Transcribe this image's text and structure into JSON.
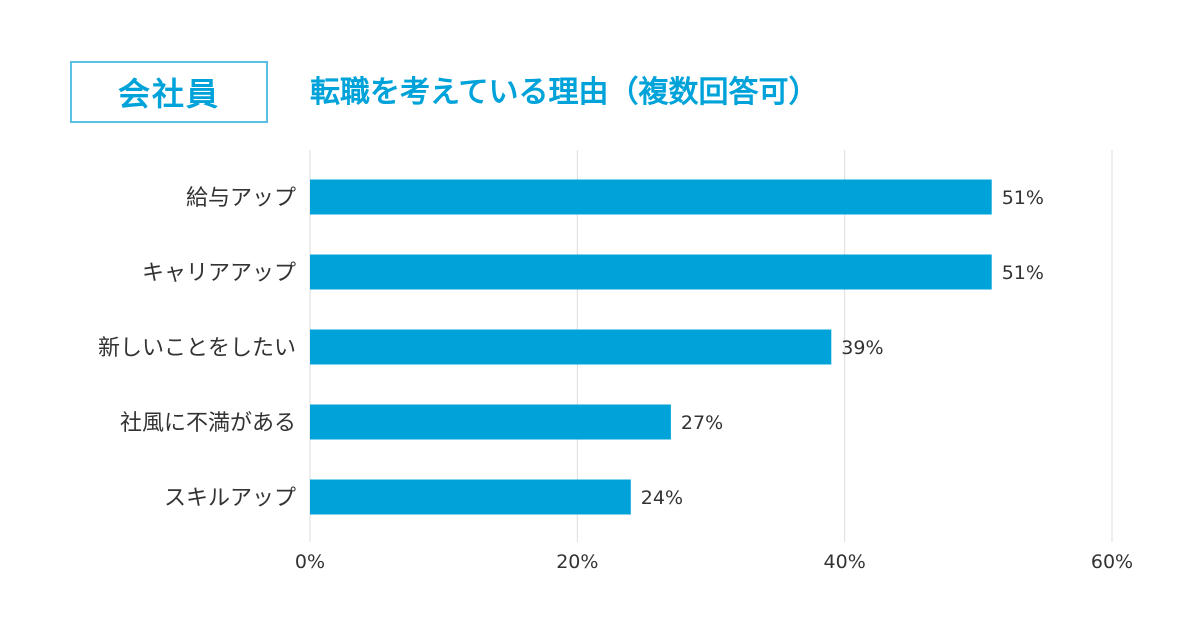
{
  "header": {
    "badge": "会社員",
    "title": "転職を考えている理由（複数回答可）"
  },
  "colors": {
    "bar": "#00a3d9",
    "accent": "#00a3d9",
    "grid": "#dddddd",
    "text": "#333333"
  },
  "chart_data": {
    "type": "bar",
    "orientation": "horizontal",
    "title": "転職を考えている理由（複数回答可）",
    "categories": [
      "給与アップ",
      "キャリアアップ",
      "新しいことをしたい",
      "社風に不満がある",
      "スキルアップ"
    ],
    "values": [
      51,
      51,
      39,
      27,
      24
    ],
    "value_labels": [
      "51%",
      "51%",
      "39%",
      "27%",
      "24%"
    ],
    "xlim": [
      0,
      60
    ],
    "xticks": [
      0,
      20,
      40,
      60
    ],
    "xtick_labels": [
      "0%",
      "20%",
      "40%",
      "60%"
    ],
    "grid": true
  }
}
